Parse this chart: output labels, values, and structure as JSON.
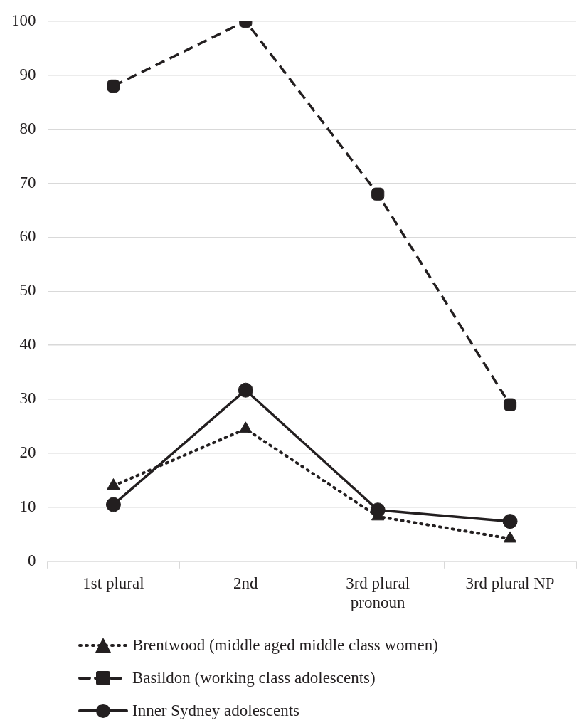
{
  "chart_data": {
    "type": "line",
    "categories": [
      "1st plural",
      "2nd",
      "3rd plural pronoun",
      "3rd plural NP"
    ],
    "series": [
      {
        "name": "Brentwood (middle aged middle class women)",
        "color": "#231f20",
        "marker": "triangle",
        "line_style": "dotted",
        "values": [
          14.0,
          24.5,
          8.3,
          4.2
        ]
      },
      {
        "name": "Basildon (working class adolescents)",
        "color": "#231f20",
        "marker": "square",
        "line_style": "dashed",
        "values": [
          88,
          100,
          68,
          29
        ]
      },
      {
        "name": "Inner Sydney adolescents",
        "color": "#231f20",
        "marker": "circle",
        "line_style": "solid",
        "values": [
          10.5,
          31.7,
          9.5,
          7.4
        ]
      }
    ],
    "ylim": [
      0,
      100
    ],
    "yticks": [
      0,
      10,
      20,
      30,
      40,
      50,
      60,
      70,
      80,
      90,
      100
    ],
    "grid": "y",
    "legend": "bottom"
  }
}
